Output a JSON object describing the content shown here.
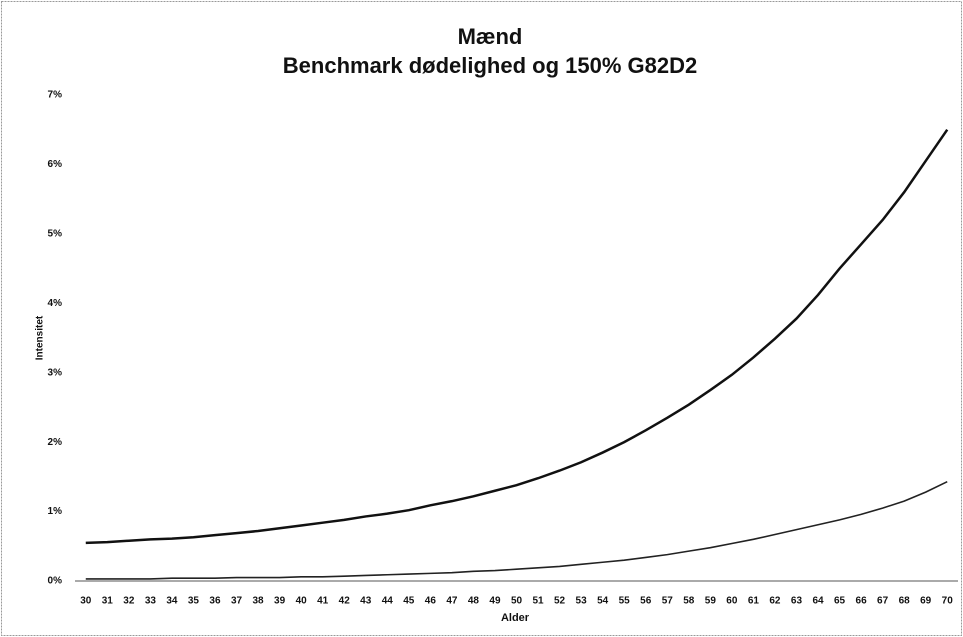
{
  "chart_data": {
    "type": "line",
    "title": "Mænd",
    "subtitle": "Benchmark dødelighed og 150% G82D2",
    "y_label": "Intensitet",
    "x_label": "Alder",
    "categories": [
      "30",
      "31",
      "32",
      "33",
      "34",
      "35",
      "36",
      "37",
      "38",
      "39",
      "40",
      "41",
      "42",
      "43",
      "44",
      "45",
      "46",
      "47",
      "48",
      "49",
      "50",
      "51",
      "52",
      "53",
      "54",
      "55",
      "56",
      "57",
      "58",
      "59",
      "60",
      "61",
      "62",
      "63",
      "64",
      "65",
      "66",
      "67",
      "68",
      "69",
      "70"
    ],
    "series": [
      {
        "color": "#111111",
        "values": [
          0.55,
          0.56,
          0.58,
          0.6,
          0.61,
          0.63,
          0.66,
          0.69,
          0.72,
          0.76,
          0.8,
          0.84,
          0.88,
          0.93,
          0.97,
          1.02,
          1.09,
          1.15,
          1.22,
          1.3,
          1.38,
          1.48,
          1.59,
          1.71,
          1.85,
          2.0,
          2.17,
          2.35,
          2.54,
          2.75,
          2.97,
          3.22,
          3.49,
          3.78,
          4.12,
          4.5,
          4.85,
          5.2,
          5.6,
          6.05,
          6.5
        ]
      },
      {
        "color": "#222222",
        "values": [
          0.03,
          0.03,
          0.03,
          0.03,
          0.04,
          0.04,
          0.04,
          0.05,
          0.05,
          0.05,
          0.06,
          0.06,
          0.07,
          0.08,
          0.09,
          0.1,
          0.11,
          0.12,
          0.14,
          0.15,
          0.17,
          0.19,
          0.21,
          0.24,
          0.27,
          0.3,
          0.34,
          0.38,
          0.43,
          0.48,
          0.54,
          0.6,
          0.67,
          0.74,
          0.81,
          0.88,
          0.96,
          1.05,
          1.15,
          1.28,
          1.43
        ]
      }
    ],
    "ylim": [
      0,
      7
    ],
    "yticks": [
      {
        "value": 0,
        "label": "0%"
      },
      {
        "value": 1,
        "label": "1%"
      },
      {
        "value": 2,
        "label": "2%"
      },
      {
        "value": 3,
        "label": "3%"
      },
      {
        "value": 4,
        "label": "4%"
      },
      {
        "value": 5,
        "label": "5%"
      },
      {
        "value": 6,
        "label": "6%"
      },
      {
        "value": 7,
        "label": "7%"
      }
    ],
    "grid": false
  }
}
